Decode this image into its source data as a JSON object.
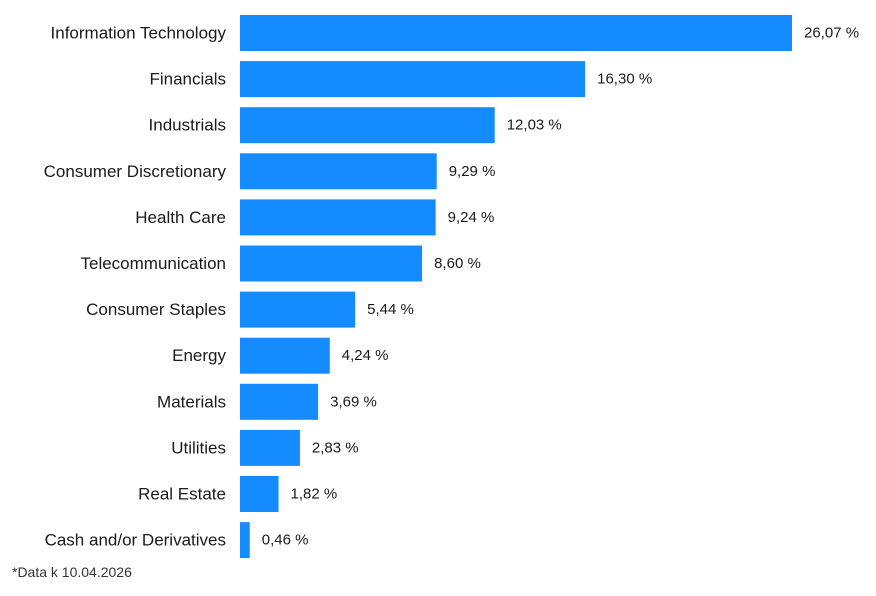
{
  "chart_data": {
    "type": "bar",
    "orientation": "horizontal",
    "categories": [
      "Information Technology",
      "Financials",
      "Industrials",
      "Consumer Discretionary",
      "Health Care",
      "Telecommunication",
      "Consumer Staples",
      "Energy",
      "Materials",
      "Utilities",
      "Real Estate",
      "Cash and/or Derivatives"
    ],
    "values": [
      26.07,
      16.3,
      12.03,
      9.29,
      9.24,
      8.6,
      5.44,
      4.24,
      3.69,
      2.83,
      1.82,
      0.46
    ],
    "value_labels": [
      "26,07 %",
      "16,30 %",
      "12,03 %",
      "9,29 %",
      "9,24 %",
      "8,60 %",
      "5,44 %",
      "4,24 %",
      "3,69 %",
      "2,83 %",
      "1,82 %",
      "0,46 %"
    ],
    "bar_color": "#148cff",
    "grid": false,
    "legend": "none"
  },
  "footnote": "*Data k 10.04.2026"
}
